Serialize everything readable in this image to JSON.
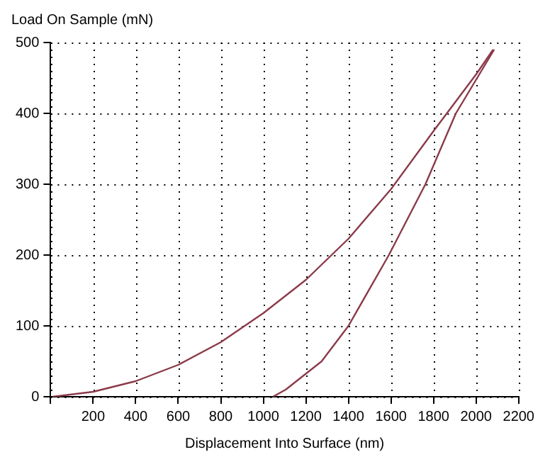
{
  "chart_data": {
    "type": "line",
    "xlabel": "Displacement Into Surface (nm)",
    "ylabel": "Load On Sample (mN)",
    "xlim": [
      0,
      2200
    ],
    "xticks": [
      {
        "value": 0,
        "label": null
      },
      200,
      400,
      600,
      800,
      1000,
      1200,
      1400,
      1600,
      1800,
      2000,
      2200
    ],
    "ylim": [
      0,
      500
    ],
    "yticks": [
      0,
      100,
      200,
      300,
      400,
      500
    ],
    "grid": true,
    "legend": false,
    "marker": "none",
    "line_style": "solid",
    "series": [
      {
        "color": "#8b3a4a",
        "x": [
          10,
          200,
          400,
          600,
          800,
          1000,
          1200,
          1400,
          1600,
          1800,
          2000,
          2080
        ],
        "values": [
          0,
          7,
          22,
          45,
          77,
          118,
          165,
          223,
          293,
          375,
          455,
          490
        ]
      },
      {
        "color": "#8b3a4a",
        "x": [
          2085,
          1905,
          1762,
          1590,
          1400,
          1274,
          1105,
          1045
        ],
        "values": [
          490,
          400,
          300,
          200,
          100,
          50,
          10,
          0
        ]
      }
    ]
  }
}
